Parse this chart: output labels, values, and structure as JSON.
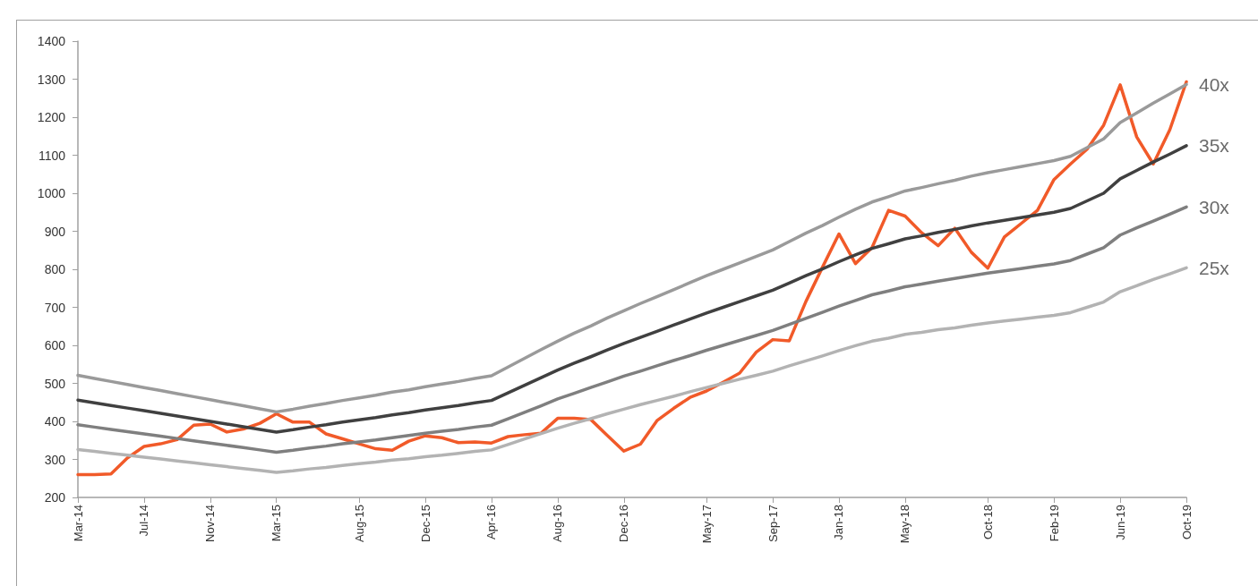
{
  "chart_data": {
    "type": "line",
    "categories": [
      "Mar-14",
      null,
      null,
      null,
      "Jul-14",
      null,
      null,
      null,
      "Nov-14",
      null,
      null,
      null,
      "Mar-15",
      null,
      null,
      null,
      null,
      "Aug-15",
      null,
      null,
      null,
      "Dec-15",
      null,
      null,
      null,
      "Apr-16",
      null,
      null,
      null,
      "Aug-16",
      null,
      null,
      null,
      "Dec-16",
      null,
      null,
      null,
      null,
      "May-17",
      null,
      null,
      null,
      "Sep-17",
      null,
      null,
      null,
      "Jan-18",
      null,
      null,
      null,
      "May-18",
      null,
      null,
      null,
      null,
      "Oct-18",
      null,
      null,
      null,
      "Feb-19",
      null,
      null,
      null,
      "Jun-19",
      null,
      null,
      null,
      "Oct-19"
    ],
    "series": [
      {
        "color": "#f15a29",
        "values": [
          260,
          260,
          262,
          304,
          334,
          341,
          352,
          390,
          393,
          372,
          380,
          395,
          420,
          398,
          398,
          367,
          354,
          341,
          328,
          324,
          348,
          362,
          357,
          344,
          346,
          343,
          360,
          365,
          369,
          408,
          408,
          405,
          363,
          322,
          340,
          402,
          434,
          463,
          480,
          503,
          527,
          582,
          615,
          612,
          715,
          805,
          893,
          815,
          857,
          955,
          940,
          896,
          862,
          908,
          845,
          803,
          885,
          920,
          955,
          1036,
          1077,
          1116,
          1179,
          1285,
          1148,
          1077,
          1167,
          1293
        ]
      },
      {
        "name": "40x",
        "color": "#9a9a9a",
        "values": [
          521,
          513,
          505,
          497,
          489,
          481,
          473,
          465,
          457,
          449,
          441,
          433,
          425,
          432,
          440,
          447,
          455,
          462,
          469,
          477,
          483,
          491,
          498,
          505,
          513,
          520,
          543,
          566,
          589,
          611,
          632,
          651,
          672,
          691,
          710,
          728,
          746,
          765,
          783,
          800,
          817,
          834,
          851,
          873,
          895,
          915,
          937,
          958,
          977,
          991,
          1006,
          1015,
          1025,
          1034,
          1045,
          1054,
          1062,
          1070,
          1078,
          1086,
          1097,
          1120,
          1143,
          1186,
          1211,
          1237,
          1261,
          1286
        ]
      },
      {
        "name": "35x",
        "color": "#404040",
        "values": [
          456,
          449,
          442,
          435,
          428,
          421,
          414,
          407,
          400,
          393,
          386,
          379,
          372,
          378,
          385,
          391,
          398,
          404,
          410,
          417,
          423,
          430,
          436,
          442,
          449,
          455,
          475,
          495,
          515,
          535,
          553,
          570,
          588,
          605,
          621,
          637,
          653,
          669,
          685,
          700,
          715,
          730,
          745,
          764,
          783,
          801,
          820,
          838,
          855,
          867,
          880,
          888,
          897,
          905,
          914,
          922,
          929,
          936,
          943,
          950,
          960,
          980,
          1000,
          1038,
          1060,
          1082,
          1103,
          1125
        ]
      },
      {
        "name": "30x",
        "color": "#7f7f7f",
        "values": [
          391,
          385,
          379,
          373,
          367,
          361,
          355,
          349,
          343,
          337,
          331,
          325,
          319,
          324,
          330,
          335,
          341,
          346,
          351,
          357,
          363,
          369,
          374,
          379,
          385,
          390,
          407,
          424,
          441,
          459,
          474,
          489,
          504,
          519,
          532,
          546,
          560,
          573,
          587,
          600,
          613,
          626,
          639,
          655,
          671,
          687,
          703,
          718,
          733,
          743,
          754,
          761,
          769,
          776,
          783,
          790,
          796,
          802,
          808,
          814,
          823,
          840,
          857,
          890,
          909,
          927,
          945,
          964
        ]
      },
      {
        "name": "25x",
        "color": "#b3b3b3",
        "values": [
          326,
          321,
          316,
          311,
          306,
          301,
          296,
          291,
          286,
          281,
          276,
          271,
          266,
          270,
          275,
          279,
          284,
          289,
          293,
          298,
          302,
          307,
          311,
          316,
          321,
          325,
          339,
          354,
          368,
          382,
          395,
          407,
          420,
          432,
          444,
          455,
          466,
          478,
          489,
          500,
          511,
          521,
          532,
          546,
          559,
          572,
          586,
          599,
          611,
          619,
          629,
          634,
          641,
          646,
          653,
          659,
          664,
          669,
          674,
          679,
          686,
          700,
          714,
          741,
          757,
          773,
          788,
          804
        ]
      }
    ],
    "ylim": [
      200,
      1400
    ],
    "yticks": [
      200,
      300,
      400,
      500,
      600,
      700,
      800,
      900,
      1000,
      1100,
      1200,
      1300,
      1400
    ],
    "marker": "none"
  }
}
